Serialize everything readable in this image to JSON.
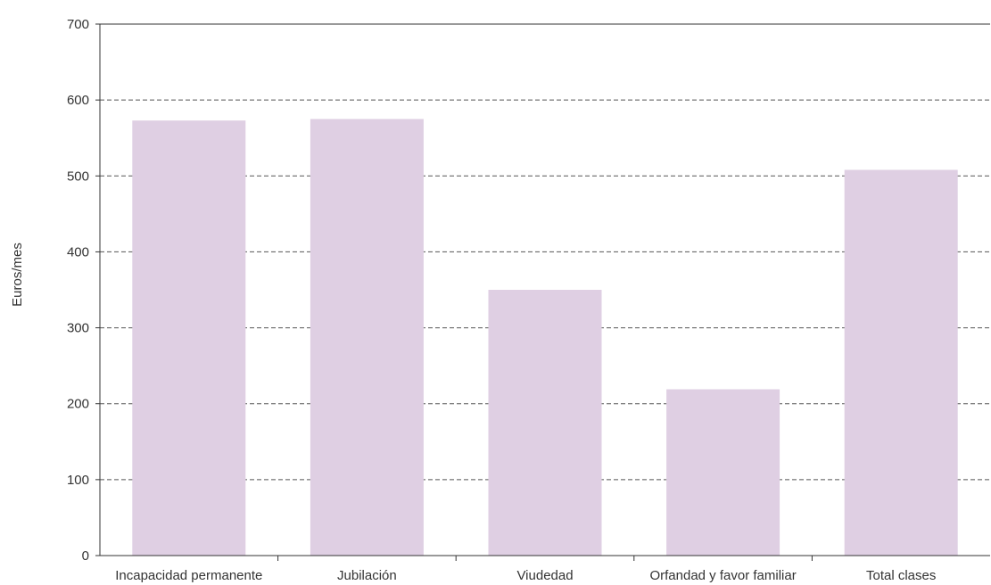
{
  "chart_data": {
    "type": "bar",
    "title": "",
    "xlabel": "",
    "ylabel": "Euros/mes",
    "categories": [
      "Incapacidad permanente",
      "Jubilación",
      "Viudedad",
      "Orfandad y favor familiar",
      "Total clases"
    ],
    "values": [
      573,
      575,
      350,
      219,
      508
    ],
    "ylim": [
      0,
      700
    ],
    "yticks": [
      "0",
      "100",
      "200",
      "300",
      "400",
      "500",
      "600",
      "700"
    ],
    "grid": true,
    "legend": "none",
    "bar_color": "#dfcfe3"
  }
}
